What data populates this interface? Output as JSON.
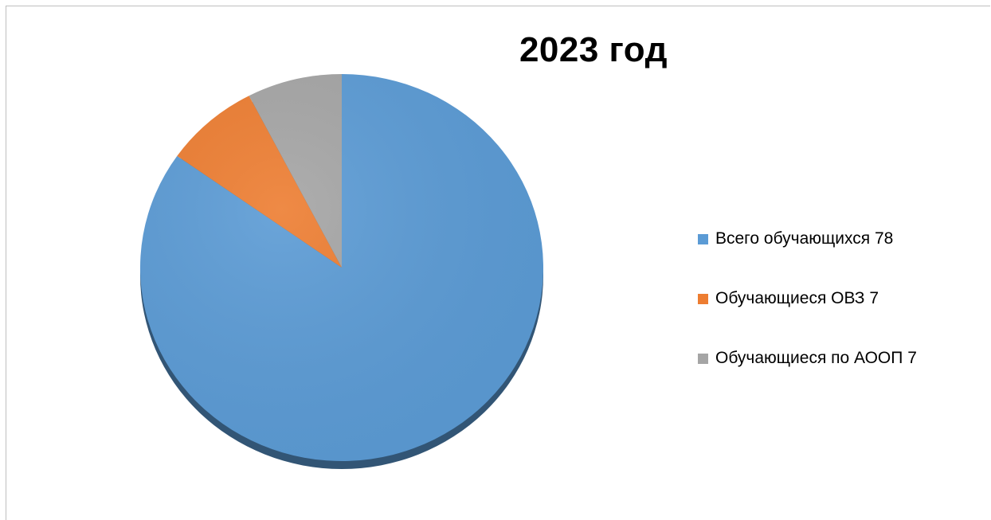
{
  "chart_data": {
    "type": "pie",
    "title": "2023 год",
    "categories": [
      "Всего обучающихся 78",
      "Обучающиеся ОВЗ 7",
      "Обучающиеся по АООП 7"
    ],
    "values": [
      78,
      7,
      7
    ],
    "colors": [
      "#5B9BD5",
      "#ED7D31",
      "#A5A5A5"
    ],
    "legend_position": "right",
    "style": "3d-pie"
  }
}
